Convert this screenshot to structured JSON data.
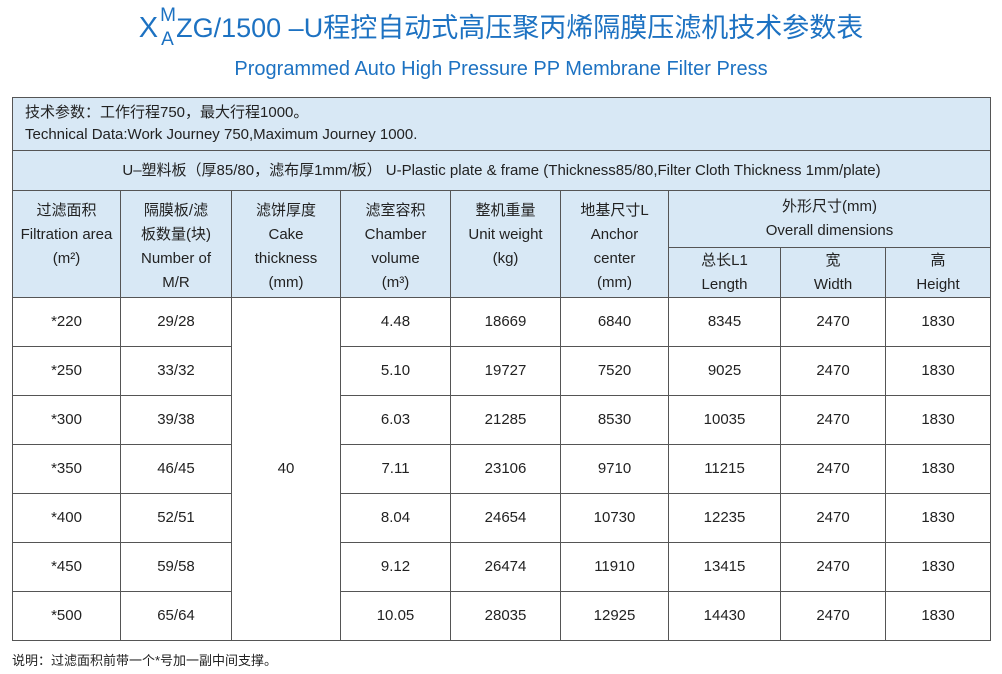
{
  "header": {
    "title": {
      "x": "X",
      "sup": "M",
      "sub": "A",
      "main": "ZG/1500 –U程控自动式高压聚丙烯隔膜压滤机技术参数表"
    },
    "subtitle": "Programmed Auto High Pressure PP Membrane Filter Press"
  },
  "table": {
    "info": [
      "技术参数：工作行程750，最大行程1000。",
      "Technical Data:Work Journey 750,Maximum Journey 1000."
    ],
    "plate": "U–塑料板（厚85/80，滤布厚1mm/板） U-Plastic plate & frame (Thickness85/80,Filter Cloth Thickness 1mm/plate)",
    "columns": [
      [
        "过滤面积",
        "Filtration area",
        "(m²)"
      ],
      [
        "隔膜板/滤",
        "板数量(块)",
        "Number of",
        "M/R"
      ],
      [
        "滤饼厚度",
        "Cake",
        "thickness",
        "(mm)"
      ],
      [
        "滤室容积",
        "Chamber",
        "volume",
        "(m³)"
      ],
      [
        "整机重量",
        "Unit weight",
        "(kg)"
      ],
      [
        "地基尺寸L",
        "Anchor",
        "center",
        "(mm)"
      ]
    ],
    "overall": {
      "lines": [
        "外形尺寸(mm)",
        "Overall  dimensions"
      ],
      "sub": [
        [
          "总长L1",
          "Length"
        ],
        [
          "宽",
          "Width"
        ],
        [
          "高",
          "Height"
        ]
      ]
    },
    "cake": "40",
    "rows": [
      [
        "*220",
        "29/28",
        "4.48",
        "18669",
        "6840",
        "8345",
        "2470",
        "1830"
      ],
      [
        "*250",
        "33/32",
        "5.10",
        "19727",
        "7520",
        "9025",
        "2470",
        "1830"
      ],
      [
        "*300",
        "39/38",
        "6.03",
        "21285",
        "8530",
        "10035",
        "2470",
        "1830"
      ],
      [
        "*350",
        "46/45",
        "7.11",
        "23106",
        "9710",
        "11215",
        "2470",
        "1830"
      ],
      [
        "*400",
        "52/51",
        "8.04",
        "24654",
        "10730",
        "12235",
        "2470",
        "1830"
      ],
      [
        "*450",
        "59/58",
        "9.12",
        "26474",
        "11910",
        "13415",
        "2470",
        "1830"
      ],
      [
        "*500",
        "65/64",
        "10.05",
        "28035",
        "12925",
        "14430",
        "2470",
        "1830"
      ]
    ]
  },
  "footnote": "说明：过滤面积前带一个*号加一副中间支撑。"
}
